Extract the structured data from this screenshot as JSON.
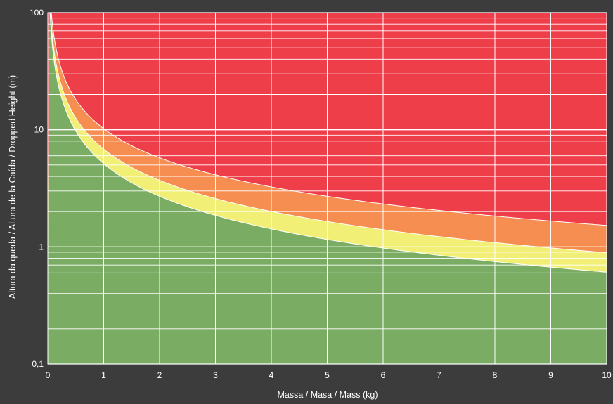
{
  "chart_data": {
    "type": "area",
    "xlabel": "Massa / Masa / Mass (kg)",
    "ylabel": "Altura da queda / Altura de la Caída / Dropped Height (m)",
    "xlim": [
      0,
      10
    ],
    "ylim": [
      0.1,
      100
    ],
    "yscale": "log",
    "grid": true,
    "x_ticks": [
      0,
      1,
      2,
      3,
      4,
      5,
      6,
      7,
      8,
      9,
      10
    ],
    "x_tick_labels": [
      "0",
      "1",
      "2",
      "3",
      "4",
      "5",
      "6",
      "7",
      "8",
      "9",
      "10"
    ],
    "y_ticks": [
      0.1,
      1,
      10,
      100
    ],
    "y_tick_labels": [
      "0,1",
      "1",
      "10",
      "100"
    ],
    "boundary_curves": [
      {
        "x": [
          0.5,
          1,
          2,
          3,
          4,
          5,
          6,
          7,
          8,
          9,
          10
        ],
        "y": [
          12.6,
          6.2,
          3.9,
          2.8,
          2.1,
          1.7,
          1.4,
          1.2,
          1.05,
          0.95,
          0.87
        ]
      },
      {
        "x": [
          0.5,
          1,
          2,
          3,
          4,
          5,
          6,
          7,
          8,
          9,
          10
        ],
        "y": [
          10.0,
          5.0,
          2.6,
          1.9,
          1.45,
          1.17,
          0.98,
          0.84,
          0.74,
          0.67,
          0.61
        ]
      },
      {
        "x": [
          0.5,
          1,
          2,
          3,
          4,
          5,
          6,
          7,
          8,
          9,
          10
        ],
        "y": [
          16.5,
          11.0,
          6.0,
          4.3,
          3.3,
          2.7,
          2.3,
          2.0,
          1.8,
          1.65,
          1.5
        ]
      }
    ],
    "colors": {
      "background": "#3c3c3c",
      "red_zone": "#ee3e4a",
      "orange_zone": "#f58e50",
      "yellow_zone": "#f2ef77",
      "green_zone": "#7aac64",
      "grid": "#ffffff"
    }
  }
}
